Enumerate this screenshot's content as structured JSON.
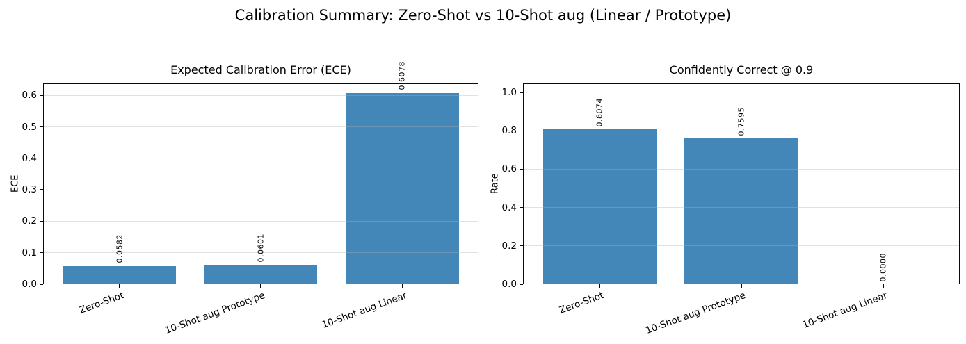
{
  "figure": {
    "suptitle": "Calibration Summary: Zero-Shot vs 10-Shot aug (Linear / Prototype)"
  },
  "style": {
    "bar_color": "#4287b8",
    "grid_color_rgba": "rgba(176,176,176,0.38)",
    "axis_color": "#0a0a0a",
    "text_color": "#000000",
    "background": "#ffffff"
  },
  "chart_data": [
    {
      "type": "bar",
      "title": "Expected Calibration Error (ECE)",
      "ylabel": "ECE",
      "xlabel": "",
      "categories": [
        "Zero-Shot",
        "10-Shot aug Prototype",
        "10-Shot aug Linear"
      ],
      "values": [
        0.0582,
        0.0601,
        0.6078
      ],
      "bar_labels": [
        "0.0582",
        "0.0601",
        "0.6078"
      ],
      "yticks": [
        0.0,
        0.1,
        0.2,
        0.3,
        0.4,
        0.5,
        0.6
      ],
      "ytick_labels": [
        "0.0",
        "0.1",
        "0.2",
        "0.3",
        "0.4",
        "0.5",
        "0.6"
      ],
      "ylim": [
        0,
        0.638
      ],
      "xlim": [
        -0.54,
        2.54
      ],
      "bar_width": 0.8,
      "grid": true,
      "grid_above_bars": true,
      "legend": null,
      "xtick_rotation_deg": 20,
      "bar_label_rotation_deg": 90
    },
    {
      "type": "bar",
      "title": "Confidently Correct @ 0.9",
      "ylabel": "Rate",
      "xlabel": "",
      "categories": [
        "Zero-Shot",
        "10-Shot aug Prototype",
        "10-Shot aug Linear"
      ],
      "values": [
        0.8074,
        0.7595,
        0.0
      ],
      "bar_labels": [
        "0.8074",
        "0.7595",
        "0.0000"
      ],
      "yticks": [
        0.0,
        0.2,
        0.4,
        0.6,
        0.8,
        1.0
      ],
      "ytick_labels": [
        "0.0",
        "0.2",
        "0.4",
        "0.6",
        "0.8",
        "1.0"
      ],
      "ylim": [
        0,
        1.047
      ],
      "xlim": [
        -0.54,
        2.54
      ],
      "bar_width": 0.8,
      "grid": true,
      "grid_above_bars": true,
      "legend": null,
      "xtick_rotation_deg": 20,
      "bar_label_rotation_deg": 90
    }
  ]
}
